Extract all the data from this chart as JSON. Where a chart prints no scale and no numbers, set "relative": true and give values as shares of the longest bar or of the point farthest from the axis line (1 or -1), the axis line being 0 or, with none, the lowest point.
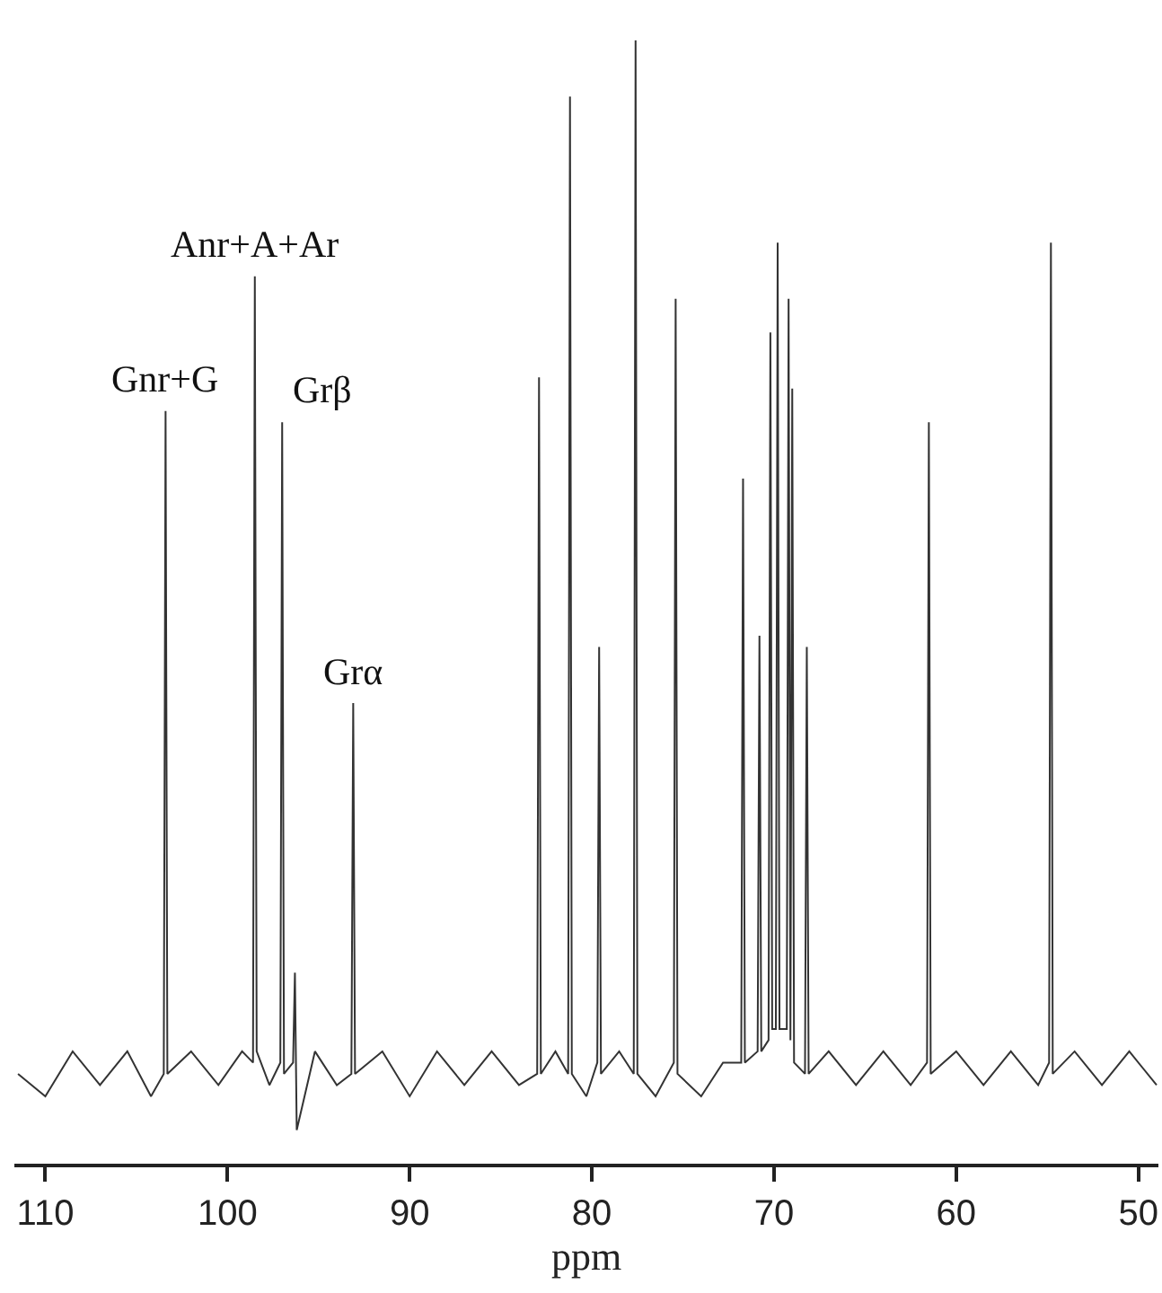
{
  "chart_data": {
    "type": "line",
    "relative": true,
    "xlabel": "ppm",
    "xlim": [
      111.7,
      48.9
    ],
    "xticks": [
      110,
      100,
      90,
      80,
      70,
      60,
      50
    ],
    "marker": "none",
    "line_style": "solid",
    "annotations": [
      {
        "text": "Gnr+G",
        "x": 103.4,
        "y": 0.67
      },
      {
        "text": "Anr+A+Ar",
        "x": 98.5,
        "y": 0.79
      },
      {
        "text": "Grβ",
        "x": 97.0,
        "y": 0.66
      },
      {
        "text": "Grα",
        "x": 93.1,
        "y": 0.41
      }
    ],
    "series": [
      {
        "color": "#333333",
        "x": [
          111.5,
          110,
          108.5,
          107,
          105.5,
          104.2,
          103.5,
          103.4,
          103.3,
          102,
          100.5,
          99.2,
          98.6,
          98.5,
          98.4,
          97.7,
          97.1,
          97.0,
          96.9,
          96.4,
          96.3,
          96.2,
          95.2,
          94,
          93.2,
          93.1,
          93.0,
          91.5,
          90,
          88.5,
          87,
          85.5,
          84,
          83,
          82.9,
          82.8,
          82,
          81.3,
          81.2,
          81.1,
          80.3,
          79.7,
          79.6,
          79.5,
          78.5,
          77.7,
          77.6,
          77.5,
          76.5,
          75.5,
          75.4,
          75.3,
          74,
          72.8,
          71.8,
          71.7,
          71.6,
          70.9,
          70.8,
          70.7,
          70.3,
          70.2,
          70.1,
          69.9,
          69.8,
          69.7,
          69.3,
          69.2,
          69.1,
          69.0,
          68.9,
          68.3,
          68.2,
          68.1,
          67,
          65.5,
          64,
          62.5,
          61.6,
          61.5,
          61.4,
          60,
          58.5,
          57,
          55.5,
          54.9,
          54.8,
          54.7,
          53.5,
          52,
          50.5,
          49
        ],
        "values": [
          0.08,
          0.06,
          0.1,
          0.07,
          0.1,
          0.06,
          0.08,
          0.67,
          0.08,
          0.1,
          0.07,
          0.1,
          0.09,
          0.79,
          0.1,
          0.07,
          0.09,
          0.66,
          0.08,
          0.09,
          0.17,
          0.03,
          0.1,
          0.07,
          0.08,
          0.41,
          0.08,
          0.1,
          0.06,
          0.1,
          0.07,
          0.1,
          0.07,
          0.08,
          0.7,
          0.08,
          0.1,
          0.08,
          0.95,
          0.08,
          0.06,
          0.09,
          0.46,
          0.08,
          0.1,
          0.08,
          1.0,
          0.08,
          0.06,
          0.09,
          0.77,
          0.08,
          0.06,
          0.09,
          0.09,
          0.61,
          0.09,
          0.1,
          0.47,
          0.1,
          0.11,
          0.74,
          0.12,
          0.12,
          0.82,
          0.12,
          0.12,
          0.77,
          0.11,
          0.69,
          0.09,
          0.08,
          0.46,
          0.08,
          0.1,
          0.07,
          0.1,
          0.07,
          0.09,
          0.66,
          0.08,
          0.1,
          0.07,
          0.1,
          0.07,
          0.09,
          0.82,
          0.08,
          0.1,
          0.07,
          0.1,
          0.07
        ]
      }
    ]
  }
}
